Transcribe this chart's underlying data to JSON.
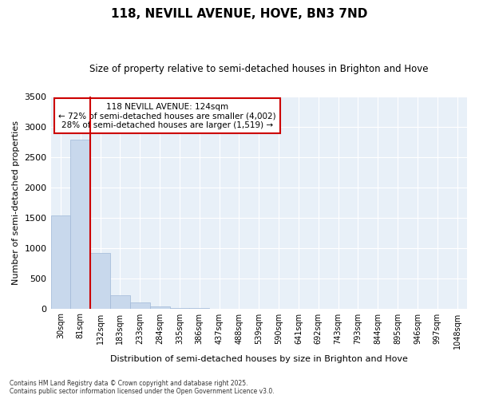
{
  "title1": "118, NEVILL AVENUE, HOVE, BN3 7ND",
  "title2": "Size of property relative to semi-detached houses in Brighton and Hove",
  "xlabel": "Distribution of semi-detached houses by size in Brighton and Hove",
  "ylabel": "Number of semi-detached properties",
  "bar_labels": [
    "30sqm",
    "81sqm",
    "132sqm",
    "183sqm",
    "233sqm",
    "284sqm",
    "335sqm",
    "386sqm",
    "437sqm",
    "488sqm",
    "539sqm",
    "590sqm",
    "641sqm",
    "692sqm",
    "743sqm",
    "793sqm",
    "844sqm",
    "895sqm",
    "946sqm",
    "997sqm",
    "1048sqm"
  ],
  "bar_values": [
    1530,
    2780,
    910,
    220,
    95,
    35,
    12,
    3,
    0,
    0,
    0,
    0,
    0,
    0,
    0,
    0,
    0,
    0,
    0,
    0,
    0
  ],
  "bar_color": "#c8d8ec",
  "bar_edge_color": "#a0b8d8",
  "vline_x_index": 1.5,
  "vline_color": "#cc0000",
  "annotation_title": "118 NEVILL AVENUE: 124sqm",
  "annotation_line1": "← 72% of semi-detached houses are smaller (4,002)",
  "annotation_line2": "28% of semi-detached houses are larger (1,519) →",
  "annotation_box_color": "#cc0000",
  "ylim": [
    0,
    3500
  ],
  "yticks": [
    0,
    500,
    1000,
    1500,
    2000,
    2500,
    3000,
    3500
  ],
  "background_color": "#ffffff",
  "plot_bg_color": "#e8f0f8",
  "grid_color": "#ffffff",
  "footer1": "Contains HM Land Registry data © Crown copyright and database right 2025.",
  "footer2": "Contains public sector information licensed under the Open Government Licence v3.0."
}
